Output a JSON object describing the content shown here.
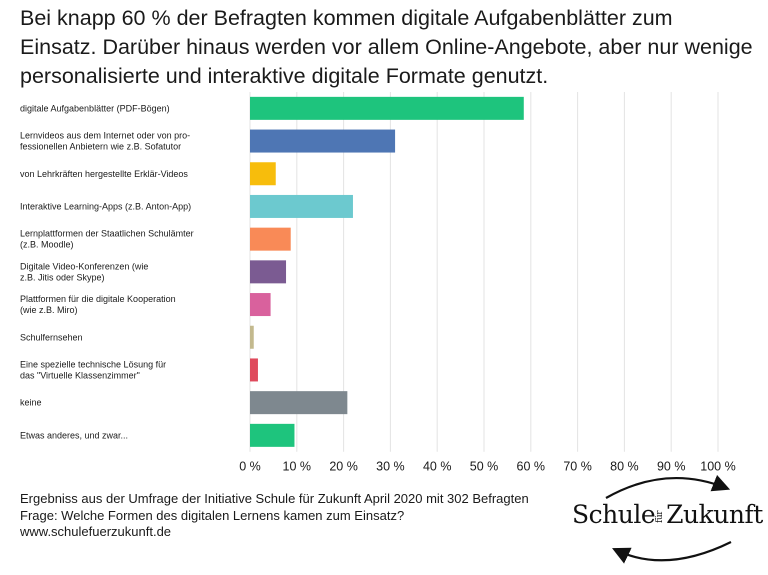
{
  "title": "Bei knapp 60 % der Befragten kommen digitale Aufgabenblätter zum Einsatz. Darüber hinaus werden vor allem Online-Angebote, aber nur wenige personalisierte und interaktive digitale Formate genutzt.",
  "footer": {
    "line1": "Ergebniss aus der Umfrage der Initiative Schule für Zukunft  April 2020 mit 302 Befragten",
    "line2": "Frage: Welche Formen des digitalen Lernens kamen zum Einsatz?",
    "line3": "www.schulefuerzukunft.de"
  },
  "logo": {
    "part1": "Schule",
    "part2": "für",
    "part3": "Zukunft"
  },
  "chart_data": {
    "type": "bar",
    "orientation": "horizontal",
    "categories": [
      [
        "digitale Aufgabenblätter (PDF-Bögen)"
      ],
      [
        "Lernvideos aus dem Internet oder von pro-",
        "fessionellen Anbietern wie z.B. Sofatutor"
      ],
      [
        "von Lehrkräften hergestellte Erklär-Videos"
      ],
      [
        "Interaktive Learning-Apps (z.B. Anton-App)"
      ],
      [
        "Lernplattformen der Staatlichen Schulämter",
        "(z.B. Moodle)"
      ],
      [
        "Digitale Video-Konferenzen (wie",
        "z.B. Jitis oder Skype)"
      ],
      [
        "Plattformen für die digitale Kooperation",
        "(wie z.B. Miro)"
      ],
      [
        "Schulfernsehen"
      ],
      [
        "Eine spezielle technische Lösung für",
        "das \"Virtuelle Klassenzimmer\""
      ],
      [
        "keine"
      ],
      [
        "Etwas anderes, und zwar..."
      ]
    ],
    "values": [
      58.5,
      31,
      5.5,
      22,
      8.7,
      7.7,
      4.4,
      0.8,
      1.7,
      20.8,
      9.5
    ],
    "colors": [
      "#1ec47d",
      "#4e76b4",
      "#f7bd0c",
      "#6cc9cf",
      "#f98a57",
      "#7b5b92",
      "#d9619d",
      "#c3b98e",
      "#df4a5c",
      "#7e888f",
      "#1ec47d"
    ],
    "xlim": [
      0,
      100
    ],
    "xticks": [
      0,
      10,
      20,
      30,
      40,
      50,
      60,
      70,
      80,
      90,
      100
    ],
    "xtick_labels": [
      "0 %",
      "10 %",
      "20 %",
      "30 %",
      "40 %",
      "50 %",
      "60 %",
      "70 %",
      "80 %",
      "90 %",
      "100 %"
    ],
    "grid": true
  }
}
